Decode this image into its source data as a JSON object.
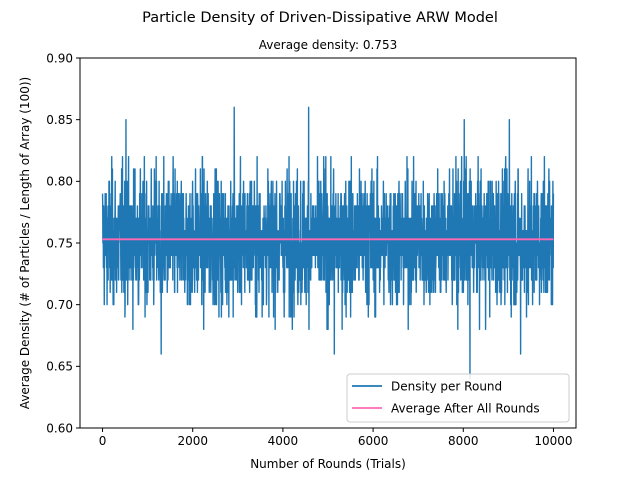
{
  "chart_data": {
    "type": "line",
    "title": "Particle Density of Driven-Dissipative ARW Model",
    "subtitle": "Average density: 0.753",
    "xlabel": "Number of Rounds (Trials)",
    "ylabel": "Average Density (# of Particles / Length of Array (100))",
    "xlim": [
      -500,
      10500
    ],
    "ylim": [
      0.6,
      0.9
    ],
    "xticks": [
      0,
      2000,
      4000,
      6000,
      8000,
      10000
    ],
    "yticks": [
      0.6,
      0.65,
      0.7,
      0.75,
      0.8,
      0.85,
      0.9
    ],
    "grid": false,
    "legend_position": "lower-right",
    "series": [
      {
        "name": "Density per Round",
        "color": "#1f77b4",
        "x_range": [
          0,
          9999
        ],
        "y_min": 0.64,
        "y_max": 0.86,
        "typical_range": [
          0.69,
          0.82
        ],
        "notable_peaks": [
          {
            "x": 520,
            "y": 0.85
          },
          {
            "x": 2920,
            "y": 0.86
          },
          {
            "x": 4570,
            "y": 0.86
          },
          {
            "x": 8020,
            "y": 0.85
          },
          {
            "x": 9020,
            "y": 0.85
          }
        ],
        "notable_troughs": [
          {
            "x": 1300,
            "y": 0.66
          },
          {
            "x": 5140,
            "y": 0.66
          },
          {
            "x": 8150,
            "y": 0.64
          },
          {
            "x": 9270,
            "y": 0.66
          }
        ]
      },
      {
        "name": "Average After All Rounds",
        "color": "#ff69b4",
        "x": [
          0,
          9999
        ],
        "y": [
          0.753,
          0.753
        ]
      }
    ]
  }
}
